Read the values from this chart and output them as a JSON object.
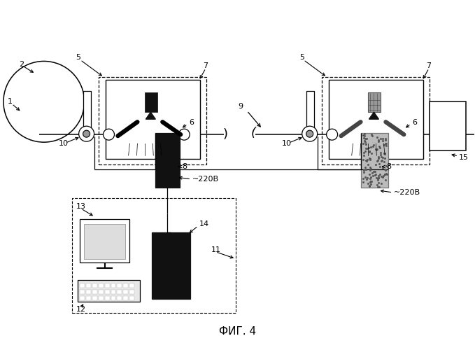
{
  "title": "ФИГ. 4",
  "bg": "#ffffff",
  "fw": 6.79,
  "fh": 5.0,
  "dpi": 100
}
